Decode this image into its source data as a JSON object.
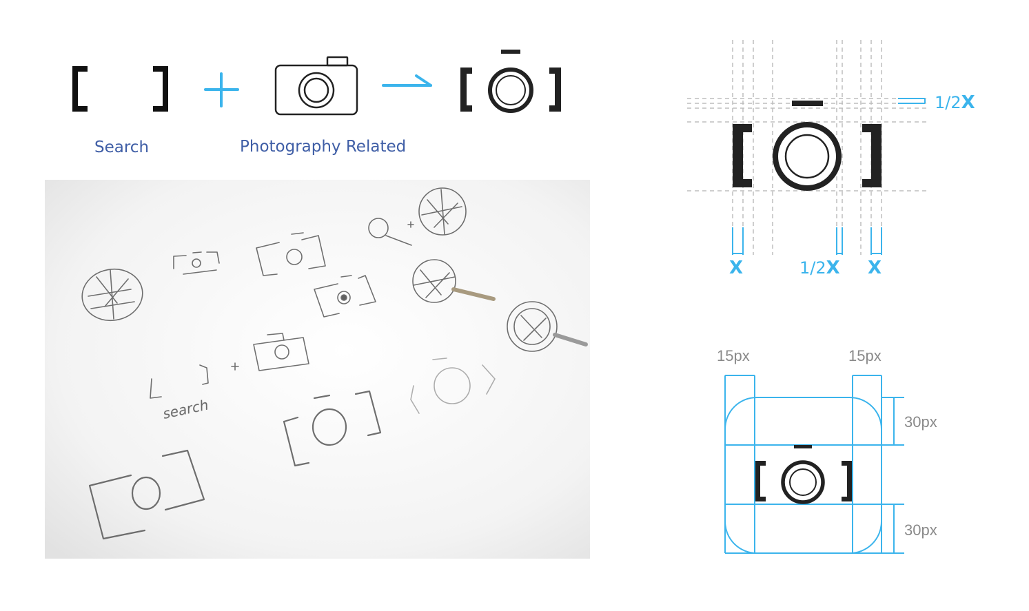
{
  "concept": {
    "search_label": "Search",
    "photo_label": "Photography Related",
    "plus_symbol": "+",
    "arrow_symbol": "→"
  },
  "sketch": {
    "handwritten_search": "search",
    "handwritten_plus": "+"
  },
  "grid_spec": {
    "half_x_right": "1/2",
    "half_x_right_unit": "X",
    "x_left": "X",
    "half_x_bottom": "1/2",
    "half_x_bottom_unit": "X",
    "x_right": "X"
  },
  "app_icon_spec": {
    "left_margin": "15px",
    "right_margin": "15px",
    "top_margin": "30px",
    "bottom_margin": "30px"
  },
  "colors": {
    "accent_blue": "#3bb4ec",
    "label_blue": "#3f5ea6",
    "icon_dark": "#222222",
    "guide_gray": "#bdbdbd",
    "measure_gray": "#8a8a8a"
  }
}
